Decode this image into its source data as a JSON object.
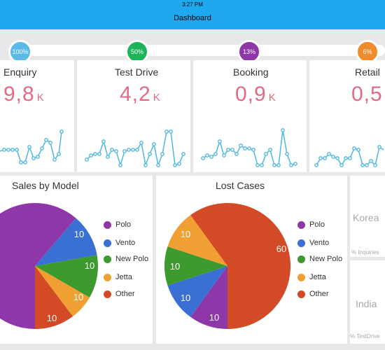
{
  "status_bar": {
    "time": "3:27 PM"
  },
  "header": {
    "title": "Dashboard"
  },
  "progress": [
    {
      "label": "100%",
      "color": "#5ab9e8"
    },
    {
      "label": "50%",
      "color": "#1fb35a"
    },
    {
      "label": "13%",
      "color": "#8e37a8"
    },
    {
      "label": "6%",
      "color": "#ef8b2c"
    }
  ],
  "kpis": [
    {
      "title": "Enquiry",
      "value": "9,8",
      "unit": "K"
    },
    {
      "title": "Test Drive",
      "value": "4,2",
      "unit": "K"
    },
    {
      "title": "Booking",
      "value": "0,9",
      "unit": "K"
    },
    {
      "title": "Retail",
      "value": "0,5",
      "unit": ""
    }
  ],
  "sales_by_model": {
    "title": "Sales by Model",
    "legend": [
      "Polo",
      "Vento",
      "New Polo",
      "Jetta",
      "Other"
    ],
    "values": [
      null,
      10,
      10,
      10,
      10
    ],
    "labels": [
      "",
      "10",
      "10",
      "10",
      "10"
    ]
  },
  "lost_cases": {
    "title": "Lost Cases",
    "legend": [
      "Polo",
      "Vento",
      "New Polo",
      "Jetta",
      "Other"
    ],
    "values": [
      10,
      10,
      10,
      10,
      60
    ],
    "labels": [
      "10",
      "10",
      "10",
      "10",
      "60"
    ]
  },
  "side_panels": [
    {
      "name": "Korea",
      "sub": "% Inquiries"
    },
    {
      "name": "India",
      "sub": "% TestDrive"
    }
  ],
  "colors": {
    "Polo": "#8e37a8",
    "Vento": "#3a6fd3",
    "New Polo": "#3d9a2e",
    "Jetta": "#f0a033",
    "Other": "#d34a26",
    "kpi_value": "#e16b84",
    "sparkline": "#4cb8e2"
  }
}
